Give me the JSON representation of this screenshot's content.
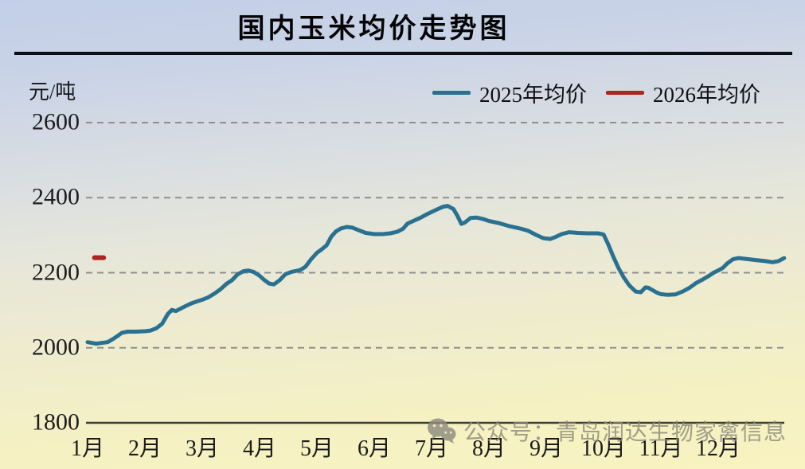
{
  "page": {
    "watermark_text": "公众号：青岛润达生物家禽信息"
  },
  "chart_data": {
    "type": "line",
    "title": "国内玉米均价走势图",
    "unit_label": "元/吨",
    "xlabel": "",
    "ylabel": "元/吨",
    "ylim": [
      1800,
      2600
    ],
    "yticks": [
      1800,
      2000,
      2200,
      2400,
      2600
    ],
    "x_categories": [
      "1月",
      "2月",
      "3月",
      "4月",
      "5月",
      "6月",
      "7月",
      "8月",
      "9月",
      "10月",
      "11月",
      "12月"
    ],
    "x_unit_note": "x coordinate in month units, 1 = 1月 tick ... 12 = 12月 tick",
    "grid": "horizontal-dashed",
    "grid_color": "#8f8f8f",
    "axis_color": "#3c3c3c",
    "legend_position": "top-right",
    "series": [
      {
        "name": "2025年均价",
        "color": "#2a7191",
        "points": [
          [
            1.0,
            2015
          ],
          [
            1.07,
            2013
          ],
          [
            1.15,
            2011
          ],
          [
            1.25,
            2013
          ],
          [
            1.35,
            2015
          ],
          [
            1.44,
            2023
          ],
          [
            1.52,
            2031
          ],
          [
            1.6,
            2040
          ],
          [
            1.7,
            2043
          ],
          [
            1.85,
            2043
          ],
          [
            2.0,
            2044
          ],
          [
            2.1,
            2046
          ],
          [
            2.2,
            2052
          ],
          [
            2.3,
            2064
          ],
          [
            2.4,
            2090
          ],
          [
            2.47,
            2101
          ],
          [
            2.54,
            2098
          ],
          [
            2.62,
            2104
          ],
          [
            2.72,
            2112
          ],
          [
            2.82,
            2119
          ],
          [
            2.92,
            2124
          ],
          [
            3.0,
            2128
          ],
          [
            3.1,
            2134
          ],
          [
            3.22,
            2145
          ],
          [
            3.32,
            2156
          ],
          [
            3.42,
            2170
          ],
          [
            3.52,
            2180
          ],
          [
            3.62,
            2196
          ],
          [
            3.72,
            2204
          ],
          [
            3.8,
            2206
          ],
          [
            3.9,
            2202
          ],
          [
            4.0,
            2192
          ],
          [
            4.08,
            2181
          ],
          [
            4.17,
            2171
          ],
          [
            4.25,
            2169
          ],
          [
            4.35,
            2180
          ],
          [
            4.45,
            2196
          ],
          [
            4.55,
            2202
          ],
          [
            4.65,
            2205
          ],
          [
            4.72,
            2208
          ],
          [
            4.8,
            2216
          ],
          [
            4.9,
            2236
          ],
          [
            5.0,
            2253
          ],
          [
            5.08,
            2262
          ],
          [
            5.17,
            2273
          ],
          [
            5.25,
            2296
          ],
          [
            5.33,
            2310
          ],
          [
            5.42,
            2318
          ],
          [
            5.52,
            2322
          ],
          [
            5.62,
            2320
          ],
          [
            5.72,
            2314
          ],
          [
            5.85,
            2306
          ],
          [
            6.0,
            2303
          ],
          [
            6.15,
            2303
          ],
          [
            6.28,
            2305
          ],
          [
            6.4,
            2309
          ],
          [
            6.5,
            2317
          ],
          [
            6.58,
            2331
          ],
          [
            6.68,
            2338
          ],
          [
            6.8,
            2346
          ],
          [
            6.92,
            2356
          ],
          [
            7.0,
            2362
          ],
          [
            7.1,
            2369
          ],
          [
            7.2,
            2376
          ],
          [
            7.28,
            2378
          ],
          [
            7.38,
            2370
          ],
          [
            7.45,
            2352
          ],
          [
            7.52,
            2330
          ],
          [
            7.58,
            2334
          ],
          [
            7.68,
            2346
          ],
          [
            7.78,
            2347
          ],
          [
            7.9,
            2343
          ],
          [
            8.0,
            2338
          ],
          [
            8.18,
            2332
          ],
          [
            8.36,
            2324
          ],
          [
            8.54,
            2318
          ],
          [
            8.68,
            2312
          ],
          [
            8.82,
            2301
          ],
          [
            8.95,
            2292
          ],
          [
            9.07,
            2290
          ],
          [
            9.16,
            2295
          ],
          [
            9.27,
            2303
          ],
          [
            9.4,
            2308
          ],
          [
            9.55,
            2306
          ],
          [
            9.72,
            2305
          ],
          [
            9.9,
            2305
          ],
          [
            10.0,
            2302
          ],
          [
            10.08,
            2276
          ],
          [
            10.17,
            2243
          ],
          [
            10.26,
            2213
          ],
          [
            10.35,
            2188
          ],
          [
            10.45,
            2166
          ],
          [
            10.56,
            2150
          ],
          [
            10.65,
            2148
          ],
          [
            10.73,
            2161
          ],
          [
            10.78,
            2160
          ],
          [
            10.85,
            2154
          ],
          [
            10.93,
            2147
          ],
          [
            11.0,
            2143
          ],
          [
            11.12,
            2141
          ],
          [
            11.25,
            2142
          ],
          [
            11.38,
            2150
          ],
          [
            11.5,
            2160
          ],
          [
            11.62,
            2173
          ],
          [
            11.73,
            2182
          ],
          [
            11.84,
            2192
          ],
          [
            11.93,
            2201
          ],
          [
            12.0,
            2206
          ],
          [
            12.08,
            2213
          ],
          [
            12.16,
            2225
          ],
          [
            12.26,
            2236
          ],
          [
            12.36,
            2239
          ],
          [
            12.48,
            2237
          ],
          [
            12.64,
            2234
          ],
          [
            12.82,
            2231
          ],
          [
            12.95,
            2228
          ],
          [
            13.05,
            2231
          ],
          [
            13.15,
            2239
          ]
        ]
      },
      {
        "name": "2026年均价",
        "color": "#b0241f",
        "points": [
          [
            1.12,
            2240
          ],
          [
            1.28,
            2240
          ]
        ]
      }
    ]
  }
}
